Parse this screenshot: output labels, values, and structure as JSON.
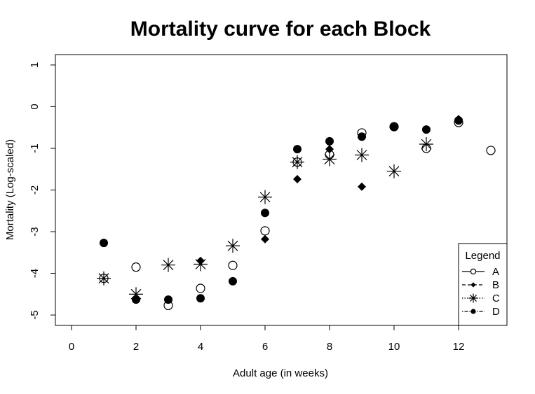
{
  "chart_data": {
    "type": "scatter",
    "title": "Mortality curve for each Block",
    "xlabel": "Adult age (in weeks)",
    "ylabel": "Mortality (Log-scaled)",
    "xlim": [
      -0.5,
      13.5
    ],
    "ylim": [
      -5.25,
      1.25
    ],
    "xticks": [
      0,
      2,
      4,
      6,
      8,
      10,
      12
    ],
    "yticks": [
      -5,
      -4,
      -3,
      -2,
      -1,
      0,
      1
    ],
    "grid": false,
    "legend": {
      "title": "Legend",
      "placement": "bottom-right"
    },
    "series": [
      {
        "name": "A",
        "marker": "open-circle",
        "line": "solid",
        "points": [
          [
            1,
            -4.12
          ],
          [
            2,
            -3.85
          ],
          [
            3,
            -4.77
          ],
          [
            4,
            -4.36
          ],
          [
            5,
            -3.81
          ],
          [
            6,
            -2.98
          ],
          [
            7,
            -1.33
          ],
          [
            8,
            -1.15
          ],
          [
            9,
            -0.63
          ],
          [
            10,
            -0.48
          ],
          [
            11,
            -1.0
          ],
          [
            12,
            -0.38
          ],
          [
            13,
            -1.05
          ]
        ]
      },
      {
        "name": "B",
        "marker": "filled-diamond",
        "line": "dashed",
        "points": [
          [
            2,
            -4.63
          ],
          [
            3,
            -4.63
          ],
          [
            4,
            -3.7
          ],
          [
            5,
            -4.19
          ],
          [
            6,
            -3.18
          ],
          [
            7,
            -1.74
          ],
          [
            8,
            -1.02
          ],
          [
            9,
            -1.92
          ],
          [
            10,
            -0.48
          ],
          [
            11,
            -0.55
          ],
          [
            12,
            -0.3
          ]
        ]
      },
      {
        "name": "C",
        "marker": "asterisk",
        "line": "dotted",
        "points": [
          [
            1,
            -4.12
          ],
          [
            2,
            -4.5
          ],
          [
            3,
            -3.8
          ],
          [
            4,
            -3.78
          ],
          [
            5,
            -3.34
          ],
          [
            6,
            -2.17
          ],
          [
            7,
            -1.33
          ],
          [
            8,
            -1.26
          ],
          [
            9,
            -1.16
          ],
          [
            10,
            -1.55
          ],
          [
            11,
            -0.9
          ]
        ]
      },
      {
        "name": "D",
        "marker": "filled-circle",
        "line": "dot-dash",
        "points": [
          [
            1,
            -3.27
          ],
          [
            2,
            -4.63
          ],
          [
            3,
            -4.63
          ],
          [
            4,
            -4.6
          ],
          [
            5,
            -4.19
          ],
          [
            6,
            -2.55
          ],
          [
            7,
            -1.02
          ],
          [
            8,
            -0.83
          ],
          [
            9,
            -0.72
          ],
          [
            10,
            -0.49
          ],
          [
            11,
            -0.55
          ],
          [
            12,
            -0.33
          ]
        ]
      }
    ]
  }
}
